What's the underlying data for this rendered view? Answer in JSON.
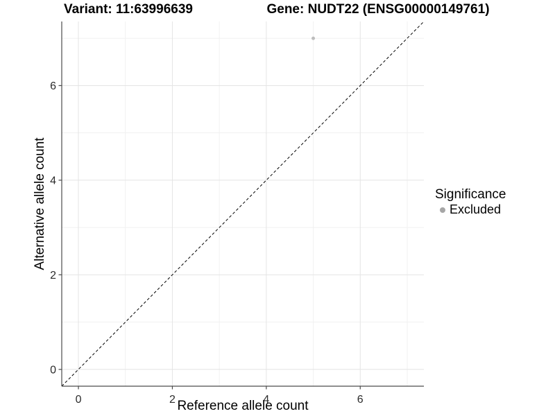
{
  "header": {
    "variant_title": "Variant: 11:63996639",
    "gene_title": "Gene: NUDT22 (ENSG00000149761)"
  },
  "chart_data": {
    "type": "scatter",
    "xlabel": "Reference allele count",
    "ylabel": "Alternative allele count",
    "xlim": [
      -0.355,
      7.355
    ],
    "ylim": [
      -0.355,
      7.355
    ],
    "xticks": [
      0,
      2,
      4,
      6
    ],
    "yticks": [
      0,
      2,
      4,
      6
    ],
    "xminor": [
      1,
      3,
      5,
      7
    ],
    "yminor": [
      1,
      3,
      5,
      7
    ],
    "grid": "major and minor gridlines on white background",
    "series": [
      {
        "name": "Excluded",
        "color": "#bdbdbd",
        "points": [
          [
            5,
            7
          ]
        ]
      }
    ],
    "reference_line": {
      "type": "identity",
      "slope": 1,
      "intercept": 0,
      "style": "dashed",
      "color": "#000000"
    },
    "legend": {
      "title": "Significance",
      "position": "right",
      "entries": [
        {
          "label": "Excluded",
          "color": "#a6a6a6"
        }
      ]
    }
  },
  "colors": {
    "background": "#ffffff",
    "grid_major": "#e4e4e4",
    "grid_minor": "#f1f1f1",
    "axis_line": "#4a4a4a",
    "tick_label": "#2b2b2b",
    "axis_title": "#000000"
  }
}
